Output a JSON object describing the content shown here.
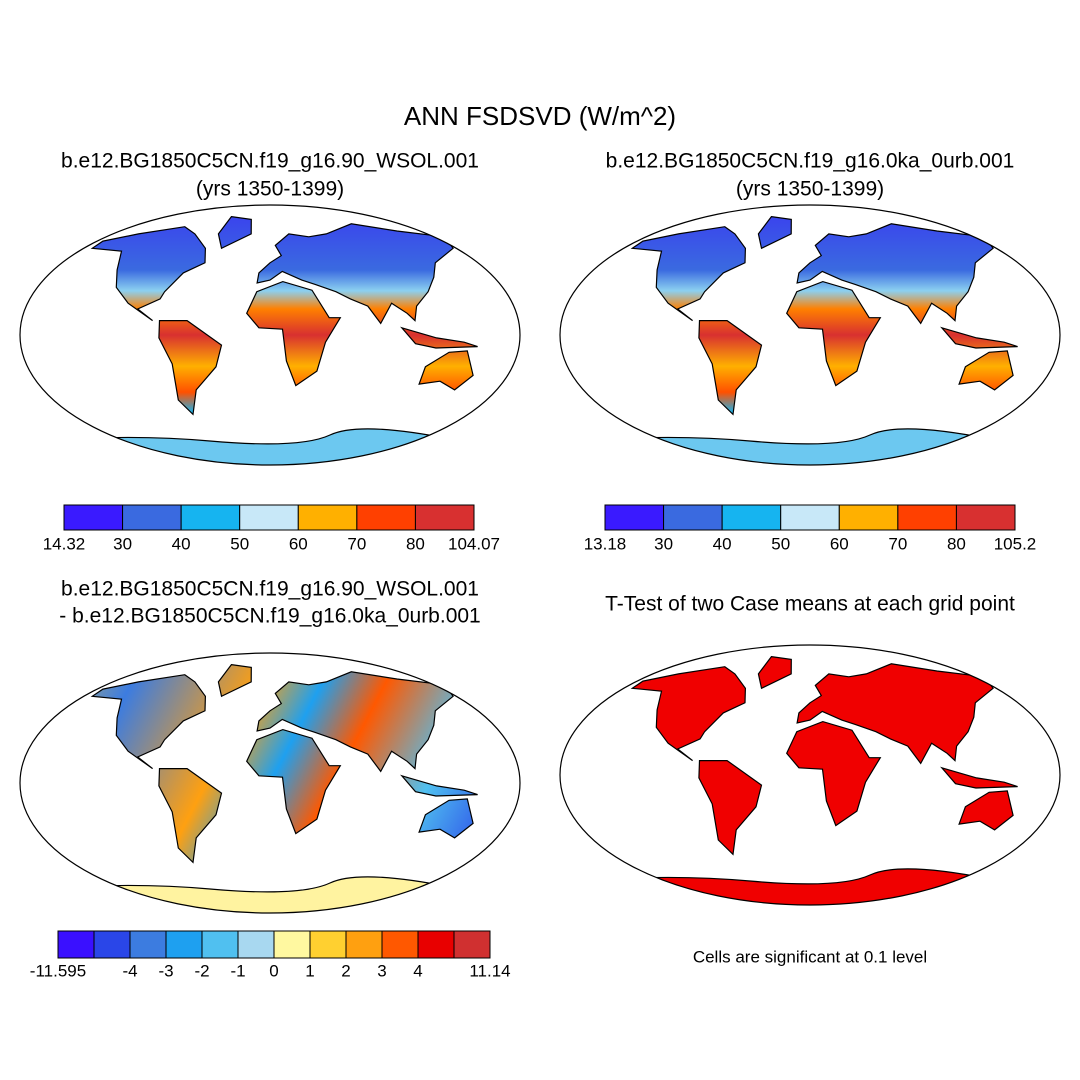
{
  "title": "ANN FSDSVD (W/m^2)",
  "panels": [
    {
      "title": [
        "b.e12.BG1850C5CN.f19_g16.90_WSOL.001",
        "(yrs 1350-1399)"
      ],
      "colorbar": {
        "colors": [
          "#3a1aff",
          "#3a6ae0",
          "#16b4f0",
          "#c8e8f8",
          "#ffb000",
          "#ff4000",
          "#d83030"
        ],
        "labels": [
          14.32,
          30,
          40,
          50,
          60,
          70,
          80,
          104.07
        ]
      }
    },
    {
      "title": [
        "b.e12.BG1850C5CN.f19_g16.0ka_0urb.001",
        "(yrs 1350-1399)"
      ],
      "colorbar": {
        "colors": [
          "#3a1aff",
          "#3a6ae0",
          "#16b4f0",
          "#c8e8f8",
          "#ffb000",
          "#ff4000",
          "#d83030"
        ],
        "labels": [
          13.18,
          30,
          40,
          50,
          60,
          70,
          80,
          105.2
        ]
      }
    },
    {
      "title": [
        "b.e12.BG1850C5CN.f19_g16.90_WSOL.001",
        "- b.e12.BG1850C5CN.f19_g16.0ka_0urb.001"
      ],
      "colorbar": {
        "colors": [
          "#3a10ff",
          "#2a46e8",
          "#3c7ce0",
          "#1ea0f0",
          "#50c0f0",
          "#a8d8f0",
          "#fff8a0",
          "#ffd030",
          "#ffa010",
          "#ff5800",
          "#e80000",
          "#d03030"
        ],
        "labels": [
          -11.595,
          null,
          -4,
          -3,
          -2,
          -1,
          0,
          1,
          2,
          3,
          4,
          null,
          11.14
        ]
      }
    },
    {
      "title": [
        "T-Test of two Case means at each grid point"
      ],
      "note": "Cells are significant at 0.1 level"
    }
  ]
}
